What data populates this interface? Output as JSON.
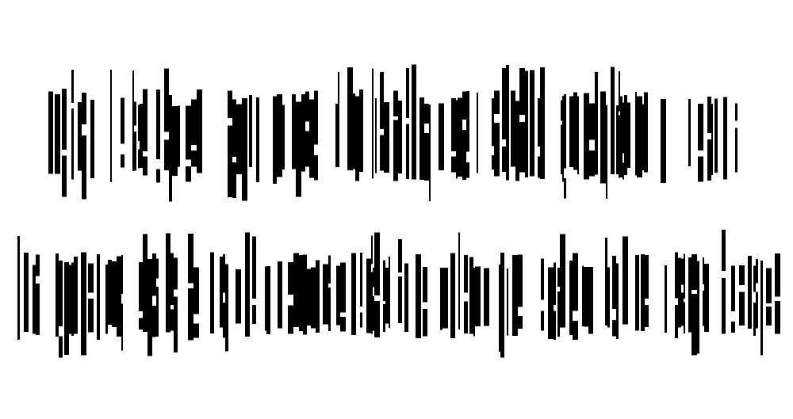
{
  "colors": {
    "background": "#ffffff",
    "ink": "#000000"
  },
  "lines": [
    {
      "seed": 17,
      "density": 0.62
    },
    {
      "seed": 91,
      "density": 0.66
    }
  ]
}
